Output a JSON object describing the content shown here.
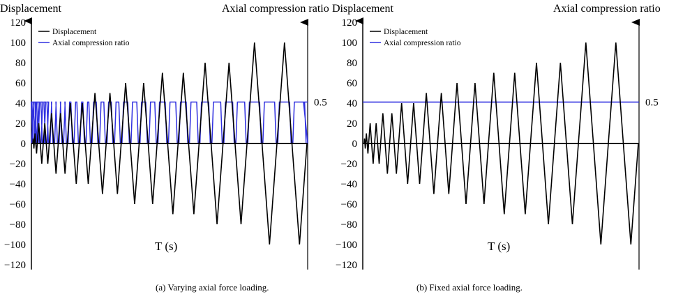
{
  "figure": {
    "colors": {
      "displacement": "#000000",
      "axial": "#3030e0",
      "axis": "#000000"
    }
  },
  "chart_data": [
    {
      "type": "line",
      "id": "a",
      "caption": "(a) Varying axial force loading.",
      "xlabel": "T (s)",
      "ylabel_left": "Displacement",
      "ylabel_right": "Axial compression ratio",
      "ylim_left": [
        -120,
        120
      ],
      "yticks_left": [
        "120",
        "100",
        "80",
        "60",
        "40",
        "20",
        "0",
        "−20",
        "−40",
        "−60",
        "−80",
        "−100",
        "−120"
      ],
      "ytick_values_left": [
        120,
        100,
        80,
        60,
        40,
        20,
        0,
        -20,
        -40,
        -60,
        -80,
        -100,
        -120
      ],
      "right_axis_marker": {
        "label": "0.5",
        "value": 0.5,
        "aligned_left_value": 41
      },
      "legend": {
        "placement": "top-left",
        "entries": [
          "Displacement",
          "Axial compression ratio"
        ]
      },
      "series": [
        {
          "name": "Displacement",
          "cycle_amplitudes": [
            5,
            10,
            20,
            20,
            30,
            30,
            40,
            40,
            50,
            50,
            60,
            60,
            70,
            70,
            80,
            80,
            100,
            100
          ],
          "description": "cyclic triangular displacement, each cycle +A then -A"
        },
        {
          "name": "Axial compression ratio",
          "mode": "varying",
          "high": 0.5,
          "low": 0,
          "description": "held at 0.5, dropping to 0 at each displacement zero crossing"
        }
      ]
    },
    {
      "type": "line",
      "id": "b",
      "caption": "(b) Fixed axial force loading.",
      "xlabel": "T (s)",
      "ylabel_left": "Displacement",
      "ylabel_right": "Axial compression ratio",
      "ylim_left": [
        -120,
        120
      ],
      "yticks_left": [
        "120",
        "100",
        "80",
        "60",
        "40",
        "20",
        "0",
        "−20",
        "−40",
        "−60",
        "−80",
        "−100",
        "−120"
      ],
      "ytick_values_left": [
        120,
        100,
        80,
        60,
        40,
        20,
        0,
        -20,
        -40,
        -60,
        -80,
        -100,
        -120
      ],
      "right_axis_marker": {
        "label": "0.5",
        "value": 0.5,
        "aligned_left_value": 41
      },
      "legend": {
        "placement": "top-left",
        "entries": [
          "Displacement",
          "Axial compression ratio"
        ]
      },
      "series": [
        {
          "name": "Displacement",
          "cycle_amplitudes": [
            5,
            10,
            20,
            20,
            30,
            30,
            40,
            40,
            50,
            50,
            60,
            60,
            70,
            70,
            80,
            80,
            100,
            100
          ],
          "description": "cyclic triangular displacement, each cycle +A then -A"
        },
        {
          "name": "Axial compression ratio",
          "mode": "constant",
          "value": 0.5
        }
      ]
    }
  ]
}
